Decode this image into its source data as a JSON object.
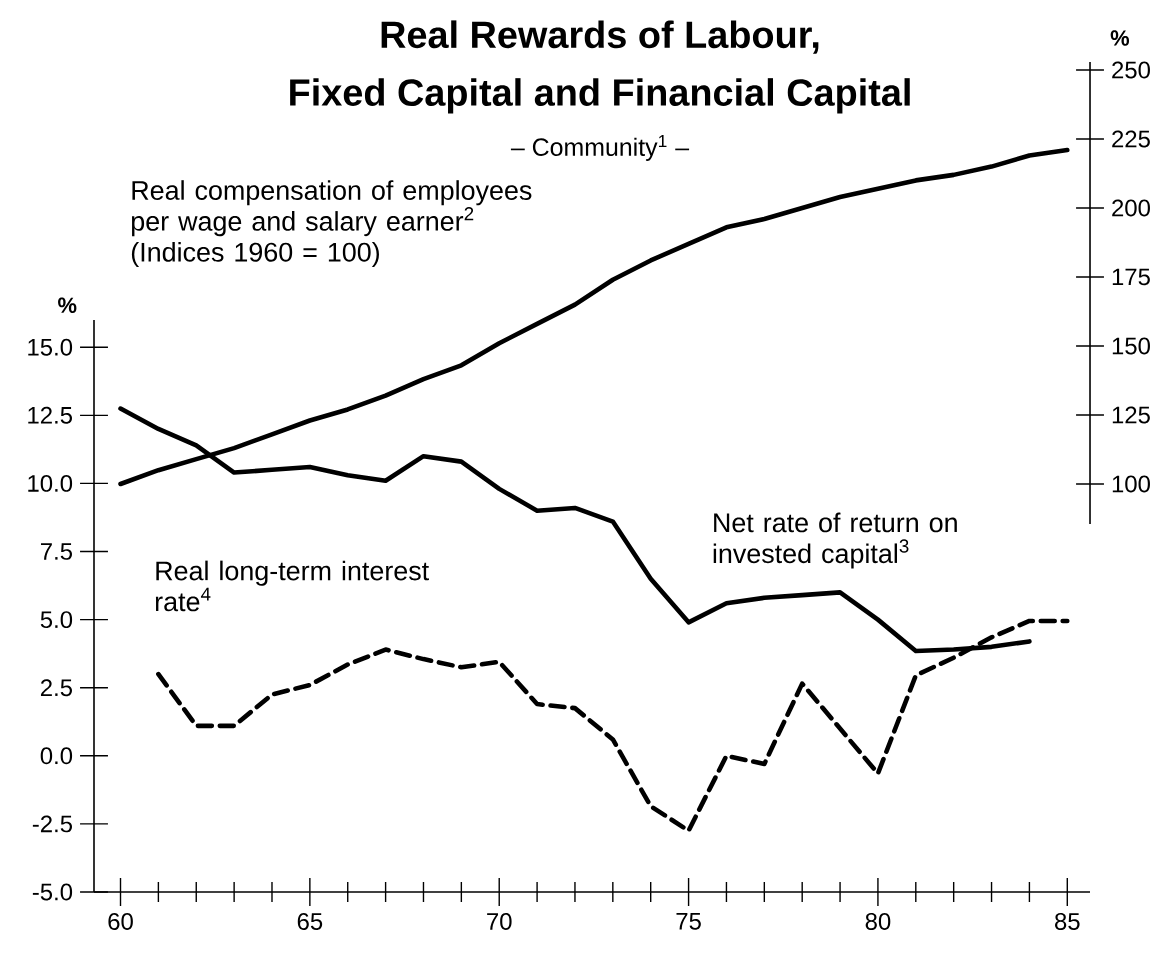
{
  "chart_data": {
    "type": "line",
    "title": "Real Rewards of Labour,\nFixed Capital and Financial Capital",
    "subtitle": "– Community$^{1}$ –",
    "ylabel": "%",
    "y2label": "%",
    "marker": "none",
    "xlim": [
      59.3,
      85.6
    ],
    "xticks": [
      60,
      65,
      70,
      75,
      80,
      85
    ],
    "ylim": [
      -5,
      16
    ],
    "yticks": [
      {
        "value": -5,
        "label": "-5.0"
      },
      {
        "value": -2.5,
        "label": "-2.5"
      },
      {
        "value": 0,
        "label": "0.0"
      },
      {
        "value": 2.5,
        "label": "2.5"
      },
      {
        "value": 5,
        "label": "5.0"
      },
      {
        "value": 7.5,
        "label": "7.5"
      },
      {
        "value": 10,
        "label": "10.0"
      },
      {
        "value": 12.5,
        "label": "12.5"
      },
      {
        "value": 15,
        "label": "15.0"
      }
    ],
    "y2lim": [
      85.5,
      252.9
    ],
    "y2ticks": [
      100,
      125,
      150,
      175,
      200,
      225,
      250
    ],
    "series": [
      {
        "name": "Real compensation of employees per wage and salary earner$^{2}$ (Indices 1960 = 100)",
        "color": "#000000",
        "axis": "y2",
        "line_style": "solid",
        "x": [
          60,
          61,
          62,
          63,
          64,
          65,
          66,
          67,
          68,
          69,
          70,
          71,
          72,
          73,
          74,
          75,
          76,
          77,
          78,
          79,
          80,
          81,
          82,
          83,
          84,
          85
        ],
        "values": [
          100,
          105,
          109,
          113,
          118,
          123,
          127,
          132,
          138,
          143,
          151,
          158,
          165,
          174,
          181,
          187,
          193,
          196,
          200,
          204,
          207,
          210,
          212,
          215,
          219,
          221
        ]
      },
      {
        "name": "Net rate of return on invested capital$^{3}$",
        "color": "#000000",
        "line_style": "solid",
        "x": [
          60,
          61,
          62,
          63,
          64,
          65,
          66,
          67,
          68,
          69,
          70,
          71,
          72,
          73,
          74,
          75,
          76,
          77,
          78,
          79,
          80,
          81,
          82,
          83,
          84
        ],
        "values": [
          12.75,
          12.0,
          11.4,
          10.4,
          10.5,
          10.6,
          10.3,
          10.1,
          11.0,
          10.8,
          9.8,
          9.0,
          9.1,
          8.6,
          6.5,
          4.9,
          5.6,
          5.8,
          5.9,
          6.0,
          5.0,
          3.85,
          3.9,
          4.0,
          4.2
        ]
      },
      {
        "name": "Real long-term interest rate$^{4}$",
        "color": "#000000",
        "line_style": "dashed",
        "x": [
          61,
          62,
          63,
          64,
          65,
          66,
          67,
          68,
          69,
          70,
          71,
          72,
          73,
          74,
          75,
          76,
          77,
          78,
          79,
          80,
          81,
          82,
          83,
          84,
          85
        ],
        "values": [
          3.0,
          1.1,
          1.1,
          2.25,
          2.6,
          3.35,
          3.9,
          3.55,
          3.25,
          3.45,
          1.9,
          1.75,
          0.6,
          -1.85,
          -2.75,
          0.0,
          -0.3,
          2.65,
          1.0,
          -0.65,
          2.95,
          3.6,
          4.35,
          4.95,
          4.95
        ]
      }
    ]
  }
}
